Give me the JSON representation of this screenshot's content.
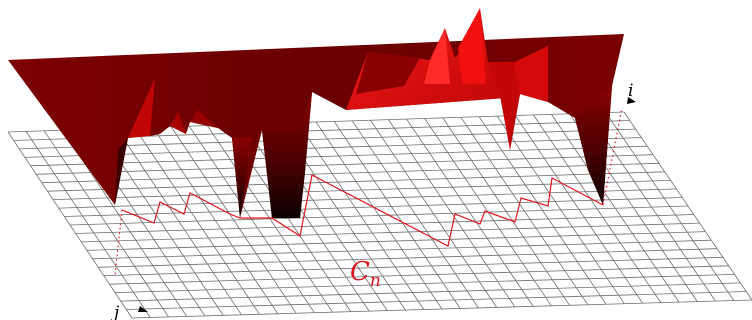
{
  "labels": {
    "axis_i": "i",
    "axis_j": "j",
    "curve_name": "C",
    "curve_subscript": "n"
  },
  "colors": {
    "grid": "#6e6e6e",
    "grid_light": "#bdbdbd",
    "curve": "#e0141e",
    "surface_dark": "#6f0000",
    "surface_mid": "#a30000",
    "surface_bright": "#e80c0c",
    "pit": "#120000"
  }
}
